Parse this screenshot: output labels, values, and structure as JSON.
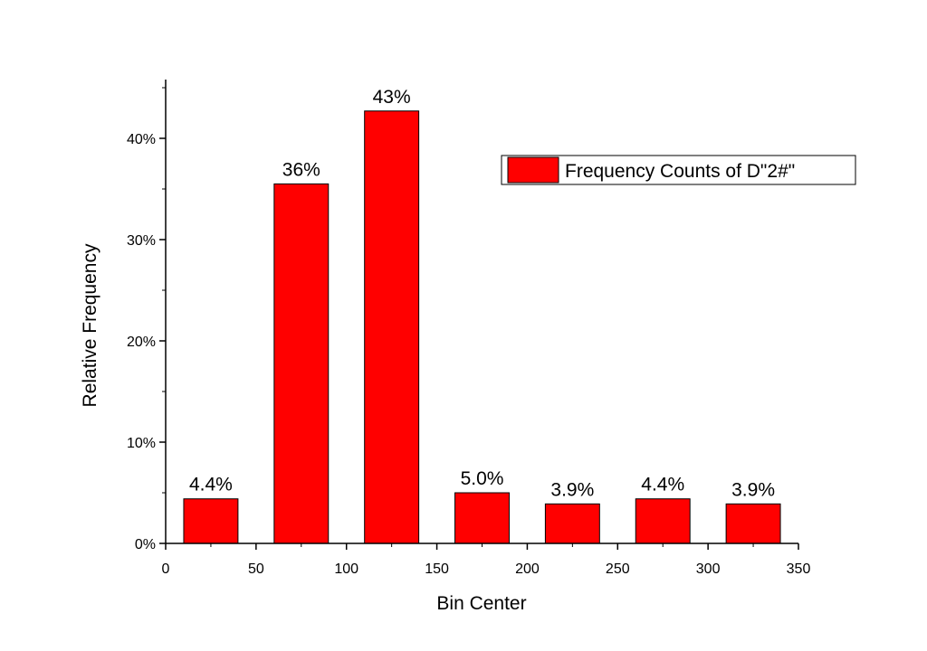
{
  "chart_data": {
    "type": "bar",
    "title": "",
    "xlabel": "Bin Center",
    "ylabel": "Relative Frequency",
    "xlim": [
      0,
      350
    ],
    "ylim": [
      0,
      0.46
    ],
    "x_ticks": [
      0,
      50,
      100,
      150,
      200,
      250,
      300,
      350
    ],
    "x_tick_labels": [
      "0",
      "50",
      "100",
      "150",
      "200",
      "250",
      "300",
      "350"
    ],
    "y_ticks": [
      0,
      0.1,
      0.2,
      0.3,
      0.4
    ],
    "y_tick_labels": [
      "0%",
      "10%",
      "20%",
      "30%",
      "40%"
    ],
    "bin_width": 50,
    "bins": [
      {
        "center": 25,
        "value": 0.044,
        "label": "4.4%"
      },
      {
        "center": 75,
        "value": 0.355,
        "label": "36%"
      },
      {
        "center": 125,
        "value": 0.427,
        "label": "43%"
      },
      {
        "center": 175,
        "value": 0.05,
        "label": "5.0%"
      },
      {
        "center": 225,
        "value": 0.039,
        "label": "3.9%"
      },
      {
        "center": 275,
        "value": 0.044,
        "label": "4.4%"
      },
      {
        "center": 325,
        "value": 0.039,
        "label": "3.9%"
      }
    ],
    "series": [
      {
        "name": "Frequency Counts of D\"2#\"",
        "color": "#ff0000"
      }
    ],
    "legend_position": "top-right",
    "grid": false
  }
}
